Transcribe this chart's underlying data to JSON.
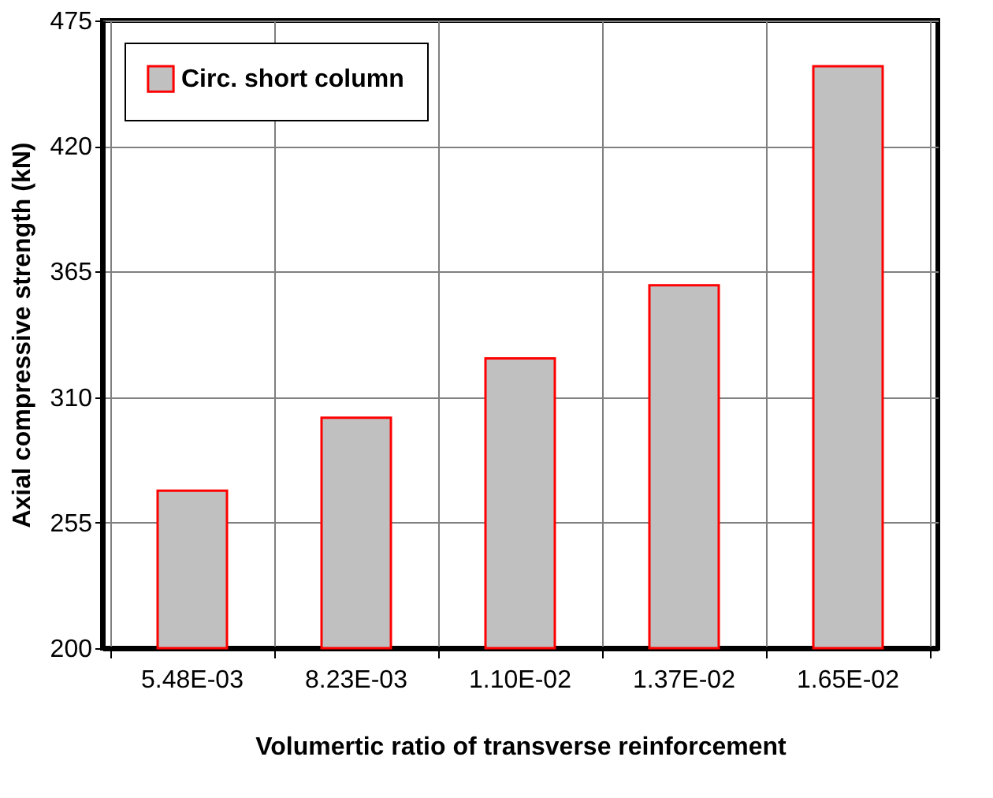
{
  "chart_data": {
    "type": "bar",
    "xlabel": "Volumertic ratio of transverse reinforcement",
    "ylabel": "Axial compressive strength (kN)",
    "categories": [
      "5.48E-03",
      "8.23E-03",
      "1.10E-02",
      "1.37E-02",
      "1.65E-02"
    ],
    "series": [
      {
        "name": "Circ. short column",
        "color": "#c0c0c0",
        "values": [
          269,
          301,
          327,
          359,
          455
        ]
      }
    ],
    "ylim": [
      200,
      475
    ],
    "yticks": [
      200,
      255,
      310,
      365,
      420,
      475
    ],
    "grid": true,
    "legend": "top left"
  }
}
